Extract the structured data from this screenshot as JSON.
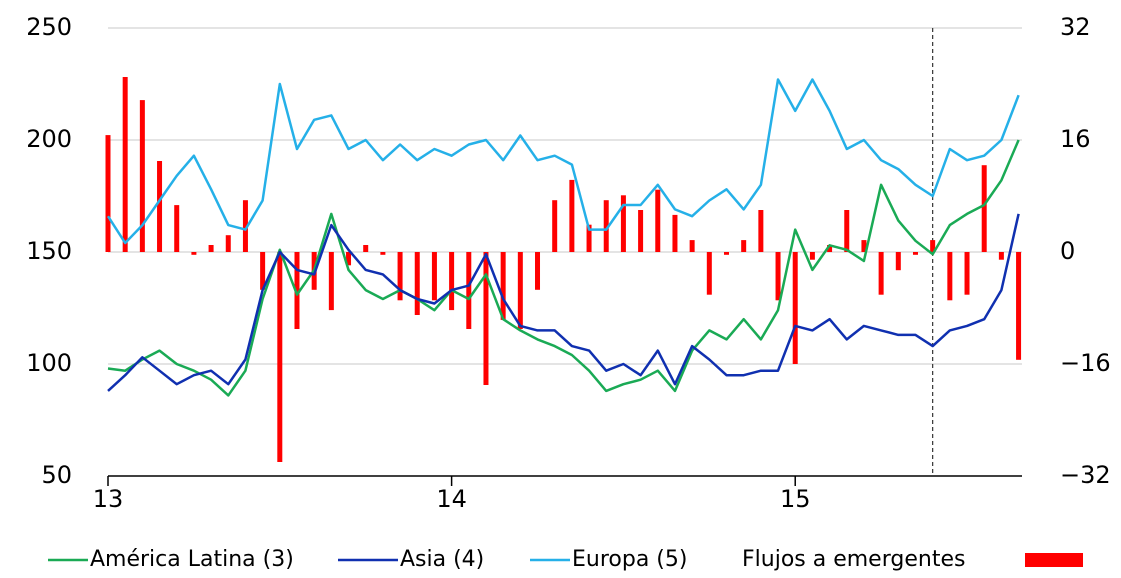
{
  "chart_data": {
    "type": "line",
    "x": [
      13,
      13.05,
      13.1,
      13.15,
      13.2,
      13.25,
      13.3,
      13.35,
      13.4,
      13.45,
      13.5,
      13.55,
      13.6,
      13.65,
      13.7,
      13.75,
      13.8,
      13.85,
      13.9,
      13.95,
      14,
      14.05,
      14.1,
      14.15,
      14.2,
      14.25,
      14.3,
      14.35,
      14.4,
      14.45,
      14.5,
      14.55,
      14.6,
      14.65,
      14.7,
      14.75,
      14.8,
      14.85,
      14.9,
      14.95,
      15,
      15.05,
      15.1,
      15.15,
      15.2,
      15.25,
      15.3,
      15.35,
      15.4,
      15.45,
      15.5,
      15.55,
      15.6,
      15.65
    ],
    "xlim": [
      13,
      15.66
    ],
    "xticks": [
      13,
      14,
      15
    ],
    "ylim": [
      50,
      250
    ],
    "yticks": [
      50,
      100,
      150,
      200,
      250
    ],
    "y2lim": [
      -32,
      32
    ],
    "y2ticks": [
      {
        "value": -32,
        "label": "−32"
      },
      {
        "value": -16,
        "label": "−16"
      },
      0,
      16,
      32
    ],
    "grid": true,
    "vline": 15.4,
    "series": [
      {
        "name": "América Latina (3)",
        "color": "#1aaa55",
        "values": [
          98,
          97,
          102,
          106,
          100,
          97,
          93,
          86,
          97,
          129,
          151,
          131,
          142,
          167,
          142,
          133,
          129,
          133,
          129,
          124,
          133,
          129,
          140,
          120,
          115,
          111,
          108,
          104,
          97,
          88,
          91,
          93,
          97,
          88,
          106,
          115,
          111,
          120,
          111,
          124,
          160,
          142,
          153,
          151,
          146,
          180,
          164,
          155,
          149,
          162,
          167,
          171,
          182,
          200
        ]
      },
      {
        "name": "Asia (4)",
        "color": "#1030b0",
        "values": [
          88,
          95,
          103,
          97,
          91,
          95,
          97,
          91,
          102,
          133,
          150,
          142,
          140,
          162,
          151,
          142,
          140,
          133,
          129,
          127,
          133,
          135,
          149,
          129,
          117,
          115,
          115,
          108,
          106,
          97,
          100,
          95,
          106,
          91,
          108,
          102,
          95,
          95,
          97,
          97,
          117,
          115,
          120,
          111,
          117,
          115,
          113,
          113,
          108,
          115,
          117,
          120,
          133,
          167
        ]
      },
      {
        "name": "Europa (5)",
        "color": "#25b0e8",
        "values": [
          166,
          154,
          162,
          173,
          184,
          193,
          178,
          162,
          160,
          173,
          225,
          196,
          209,
          211,
          196,
          200,
          191,
          198,
          191,
          196,
          193,
          198,
          200,
          191,
          202,
          191,
          193,
          189,
          160,
          160,
          171,
          171,
          180,
          169,
          166,
          173,
          178,
          169,
          180,
          227,
          213,
          227,
          213,
          196,
          200,
          191,
          187,
          180,
          175,
          196,
          191,
          193,
          200,
          220
        ]
      },
      {
        "name": "Flujos a emergentes",
        "type": "bar",
        "axis": "y2",
        "color": "#ff0000",
        "values": [
          16.7,
          25,
          21.7,
          13,
          6.7,
          -0.4,
          1,
          2.4,
          7.4,
          -5.4,
          -30,
          -11,
          -5.4,
          -8.3,
          -1.9,
          1,
          -0.4,
          -6.9,
          -9,
          -6.9,
          -8.3,
          -11,
          -19,
          -9.7,
          -11,
          -5.4,
          7.4,
          10.3,
          3.9,
          7.4,
          8.1,
          6,
          8.9,
          5.3,
          1.7,
          -6.1,
          -0.4,
          1.7,
          6,
          -6.9,
          -16,
          -1.1,
          1,
          6,
          1.7,
          -6.1,
          -2.6,
          -0.4,
          1.7,
          -6.9,
          -6.1,
          12.4,
          -1.1,
          -15.4
        ]
      }
    ]
  }
}
